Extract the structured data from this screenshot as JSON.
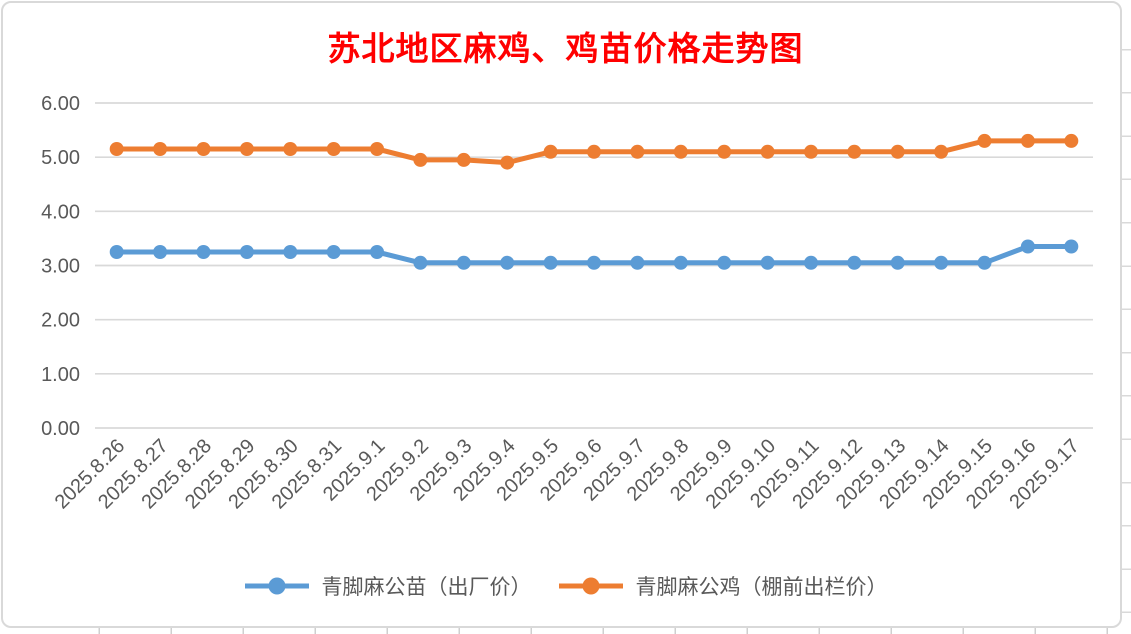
{
  "title": {
    "text": "苏北地区麻鸡、鸡苗价格走势图",
    "color": "#FF0000"
  },
  "chart_data": {
    "type": "line",
    "title": "苏北地区麻鸡、鸡苗价格走势图",
    "title_color": "#FF0000",
    "categories": [
      "2025.8.26",
      "2025.8.27",
      "2025.8.28",
      "2025.8.29",
      "2025.8.30",
      "2025.8.31",
      "2025.9.1",
      "2025.9.2",
      "2025.9.3",
      "2025.9.4",
      "2025.9.5",
      "2025.9.6",
      "2025.9.7",
      "2025.9.8",
      "2025.9.9",
      "2025.9.10",
      "2025.9.11",
      "2025.9.12",
      "2025.9.13",
      "2025.9.14",
      "2025.9.15",
      "2025.9.16",
      "2025.9.17"
    ],
    "series": [
      {
        "name": "青脚麻公苗（出厂价）",
        "color": "#5B9BD5",
        "values": [
          3.25,
          3.25,
          3.25,
          3.25,
          3.25,
          3.25,
          3.25,
          3.05,
          3.05,
          3.05,
          3.05,
          3.05,
          3.05,
          3.05,
          3.05,
          3.05,
          3.05,
          3.05,
          3.05,
          3.05,
          3.05,
          3.35,
          3.35
        ]
      },
      {
        "name": "青脚麻公鸡（棚前出栏价）",
        "color": "#ED7D31",
        "values": [
          5.15,
          5.15,
          5.15,
          5.15,
          5.15,
          5.15,
          5.15,
          4.95,
          4.95,
          4.9,
          5.1,
          5.1,
          5.1,
          5.1,
          5.1,
          5.1,
          5.1,
          5.1,
          5.1,
          5.1,
          5.3,
          5.3,
          5.3
        ]
      }
    ],
    "ylim": [
      0,
      6
    ],
    "y_ticks": [
      "0.00",
      "1.00",
      "2.00",
      "3.00",
      "4.00",
      "5.00",
      "6.00"
    ],
    "grid": true,
    "legend_position": "bottom",
    "axis_label_color": "#595959",
    "gridline_color": "#D9D9D9"
  }
}
